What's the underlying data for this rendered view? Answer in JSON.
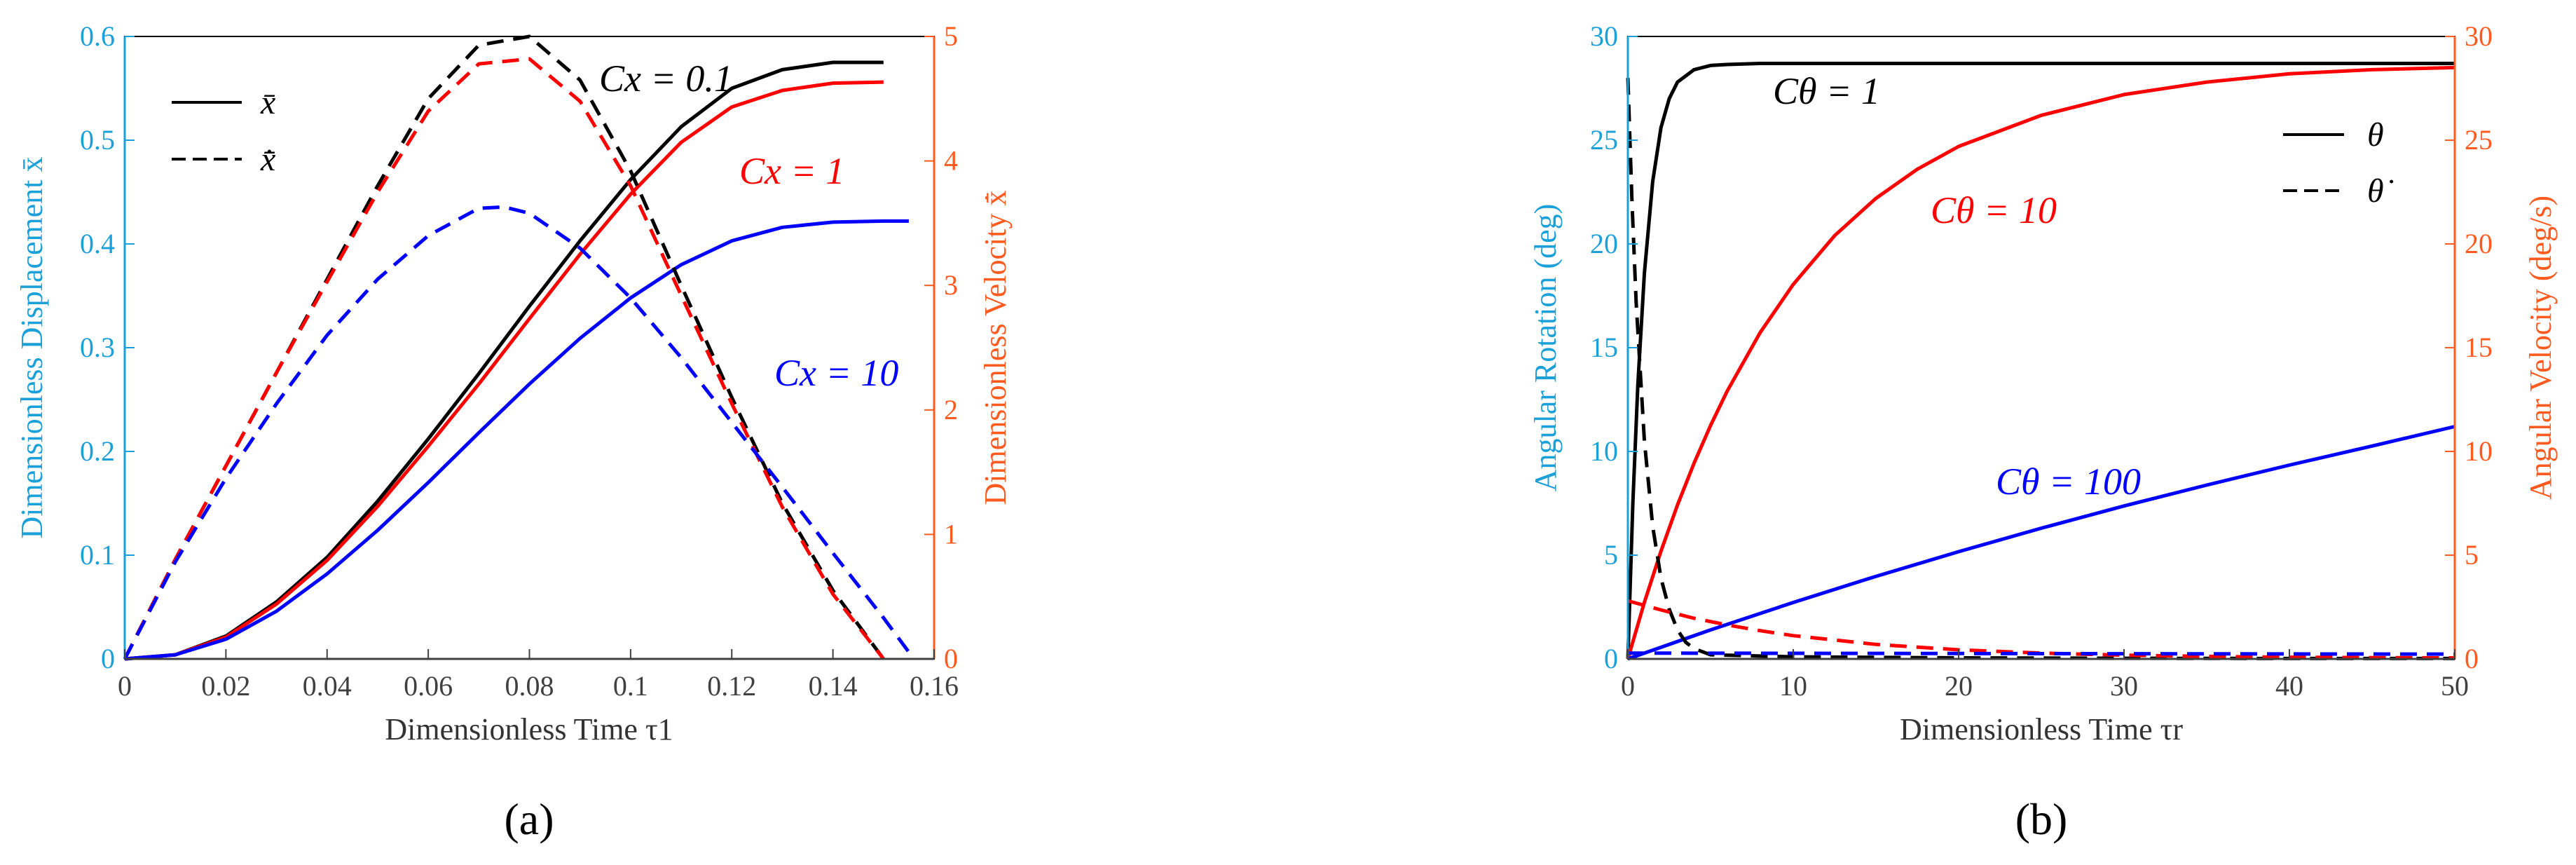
{
  "chart_data": [
    {
      "type": "line",
      "panel_label": "(a)",
      "xlabel": "Dimensionless Time τ1",
      "ylabel_left": "Dimensionless Displacement x̄",
      "ylabel_right": "Dimensionless Velocity x̄̇",
      "xlim": [
        0,
        0.16
      ],
      "ylim_left": [
        0,
        0.6
      ],
      "ylim_right": [
        0,
        5
      ],
      "x_ticks": [
        "0",
        "0.02",
        "0.04",
        "0.06",
        "0.08",
        "0.1",
        "0.12",
        "0.14",
        "0.16"
      ],
      "y_left_ticks": [
        "0",
        "0.1",
        "0.2",
        "0.3",
        "0.4",
        "0.5",
        "0.6"
      ],
      "y_right_ticks": [
        "0",
        "1",
        "2",
        "3",
        "4",
        "5"
      ],
      "legend": [
        {
          "label": "x̄",
          "style": "solid"
        },
        {
          "label": "x̄̇",
          "style": "dashed"
        }
      ],
      "annotations": [
        {
          "text": "Cx = 0.1",
          "color": "#000000"
        },
        {
          "text": "Cx = 1",
          "color": "#ff0000"
        },
        {
          "text": "Cx = 10",
          "color": "#0000ff"
        }
      ],
      "series": [
        {
          "name": "Cx = 0.1 displacement",
          "axis": "left",
          "style": "solid",
          "color": "#000000",
          "x": [
            0,
            0.01,
            0.02,
            0.03,
            0.04,
            0.05,
            0.06,
            0.07,
            0.08,
            0.09,
            0.1,
            0.11,
            0.12,
            0.13,
            0.14,
            0.15
          ],
          "values": [
            0,
            0.004,
            0.022,
            0.055,
            0.098,
            0.152,
            0.212,
            0.275,
            0.34,
            0.403,
            0.462,
            0.513,
            0.55,
            0.568,
            0.575,
            0.575
          ]
        },
        {
          "name": "Cx = 1 displacement",
          "axis": "left",
          "style": "solid",
          "color": "#ff0000",
          "x": [
            0,
            0.01,
            0.02,
            0.03,
            0.04,
            0.05,
            0.06,
            0.07,
            0.08,
            0.09,
            0.1,
            0.11,
            0.12,
            0.13,
            0.14,
            0.15
          ],
          "values": [
            0,
            0.004,
            0.021,
            0.053,
            0.095,
            0.147,
            0.205,
            0.265,
            0.328,
            0.39,
            0.448,
            0.498,
            0.532,
            0.548,
            0.555,
            0.556
          ]
        },
        {
          "name": "Cx = 10 displacement",
          "axis": "left",
          "style": "solid",
          "color": "#0000ff",
          "x": [
            0,
            0.01,
            0.02,
            0.03,
            0.04,
            0.05,
            0.06,
            0.07,
            0.08,
            0.09,
            0.1,
            0.11,
            0.12,
            0.13,
            0.14,
            0.15,
            0.155
          ],
          "values": [
            0,
            0.004,
            0.019,
            0.046,
            0.082,
            0.124,
            0.17,
            0.218,
            0.265,
            0.309,
            0.348,
            0.38,
            0.403,
            0.416,
            0.421,
            0.422,
            0.422
          ]
        },
        {
          "name": "Cx = 0.1 velocity",
          "axis": "right",
          "style": "dashed",
          "color": "#000000",
          "x": [
            0,
            0.01,
            0.02,
            0.03,
            0.04,
            0.05,
            0.06,
            0.07,
            0.08,
            0.09,
            0.1,
            0.11,
            0.12,
            0.13,
            0.14,
            0.15
          ],
          "values": [
            0,
            0.8,
            1.55,
            2.3,
            3.05,
            3.8,
            4.5,
            4.93,
            5.0,
            4.65,
            3.92,
            3.0,
            2.1,
            1.25,
            0.55,
            0.0
          ]
        },
        {
          "name": "Cx = 1 velocity",
          "axis": "right",
          "style": "dashed",
          "color": "#ff0000",
          "x": [
            0,
            0.01,
            0.02,
            0.03,
            0.04,
            0.05,
            0.06,
            0.07,
            0.08,
            0.09,
            0.1,
            0.11,
            0.12,
            0.13,
            0.14,
            0.15
          ],
          "values": [
            0,
            0.8,
            1.55,
            2.3,
            3.03,
            3.75,
            4.4,
            4.78,
            4.82,
            4.48,
            3.8,
            2.92,
            2.05,
            1.22,
            0.52,
            0.0
          ]
        },
        {
          "name": "Cx = 10 velocity",
          "axis": "right",
          "style": "dashed",
          "color": "#0000ff",
          "x": [
            0,
            0.01,
            0.02,
            0.03,
            0.04,
            0.05,
            0.06,
            0.07,
            0.075,
            0.08,
            0.09,
            0.1,
            0.11,
            0.12,
            0.13,
            0.14,
            0.15,
            0.156
          ],
          "values": [
            0,
            0.78,
            1.45,
            2.05,
            2.6,
            3.05,
            3.4,
            3.62,
            3.63,
            3.58,
            3.3,
            2.9,
            2.42,
            1.9,
            1.38,
            0.85,
            0.33,
            0.0
          ]
        }
      ]
    },
    {
      "type": "line",
      "panel_label": "(b)",
      "xlabel": "Dimensionless Time τr",
      "ylabel_left": "Angular Rotation (deg)",
      "ylabel_right": "Angular Velocity (deg/s)",
      "xlim": [
        0,
        50
      ],
      "ylim_left": [
        0,
        30
      ],
      "ylim_right": [
        0,
        30
      ],
      "x_ticks": [
        "0",
        "10",
        "20",
        "30",
        "40",
        "50"
      ],
      "y_left_ticks": [
        "0",
        "5",
        "10",
        "15",
        "20",
        "25",
        "30"
      ],
      "y_right_ticks": [
        "0",
        "5",
        "10",
        "15",
        "20",
        "25",
        "30"
      ],
      "legend": [
        {
          "label": "θ",
          "style": "solid"
        },
        {
          "label": "θ̇",
          "style": "dashed"
        }
      ],
      "annotations": [
        {
          "text": "Cθ = 1",
          "color": "#000000"
        },
        {
          "text": "Cθ = 10",
          "color": "#ff0000"
        },
        {
          "text": "Cθ = 100",
          "color": "#0000ff"
        }
      ],
      "series": [
        {
          "name": "Cθ = 1 rotation",
          "axis": "left",
          "style": "solid",
          "color": "#000000",
          "x": [
            0,
            0.3,
            0.6,
            1,
            1.5,
            2,
            2.5,
            3,
            4,
            5,
            6,
            8,
            10,
            20,
            30,
            40,
            50
          ],
          "values": [
            0,
            7.5,
            13.2,
            18.6,
            23.0,
            25.6,
            27.0,
            27.8,
            28.4,
            28.6,
            28.65,
            28.7,
            28.7,
            28.7,
            28.7,
            28.7,
            28.7
          ]
        },
        {
          "name": "Cθ = 10 rotation",
          "axis": "left",
          "style": "solid",
          "color": "#ff0000",
          "x": [
            0,
            1,
            2,
            3,
            4,
            5,
            6,
            8,
            10,
            12.5,
            15,
            17.5,
            20,
            25,
            30,
            35,
            40,
            45,
            50
          ],
          "values": [
            0,
            2.73,
            5.19,
            7.42,
            9.43,
            11.25,
            12.9,
            15.73,
            18.05,
            20.4,
            22.2,
            23.6,
            24.7,
            26.2,
            27.2,
            27.8,
            28.2,
            28.4,
            28.5
          ]
        },
        {
          "name": "Cθ = 100 rotation",
          "axis": "left",
          "style": "solid",
          "color": "#0000ff",
          "x": [
            0,
            5,
            10,
            15,
            20,
            25,
            30,
            35,
            40,
            45,
            50
          ],
          "values": [
            0,
            1.4,
            2.72,
            3.98,
            5.17,
            6.3,
            7.37,
            8.38,
            9.34,
            10.26,
            11.2
          ]
        },
        {
          "name": "Cθ = 1 velocity",
          "axis": "right",
          "style": "dashed",
          "color": "#000000",
          "x": [
            0,
            0.25,
            0.5,
            1,
            1.5,
            2,
            2.5,
            3,
            3.5,
            4,
            5,
            10,
            20,
            30,
            40,
            50
          ],
          "values": [
            28.0,
            22.0,
            17.2,
            10.5,
            6.4,
            3.9,
            2.4,
            1.4,
            0.8,
            0.5,
            0.2,
            0.1,
            0.05,
            0.03,
            0.02,
            0.02
          ]
        },
        {
          "name": "Cθ = 10 velocity",
          "axis": "right",
          "style": "dashed",
          "color": "#ff0000",
          "x": [
            0,
            2,
            4,
            6,
            8,
            10,
            15,
            20,
            25,
            30,
            35,
            40,
            45,
            50
          ],
          "values": [
            2.8,
            2.36,
            1.96,
            1.64,
            1.36,
            1.12,
            0.7,
            0.44,
            0.28,
            0.18,
            0.12,
            0.08,
            0.06,
            0.05
          ]
        },
        {
          "name": "Cθ = 100 velocity",
          "axis": "right",
          "style": "dashed",
          "color": "#0000ff",
          "x": [
            0,
            10,
            20,
            30,
            40,
            50
          ],
          "values": [
            0.28,
            0.27,
            0.26,
            0.25,
            0.24,
            0.23
          ]
        }
      ]
    }
  ]
}
